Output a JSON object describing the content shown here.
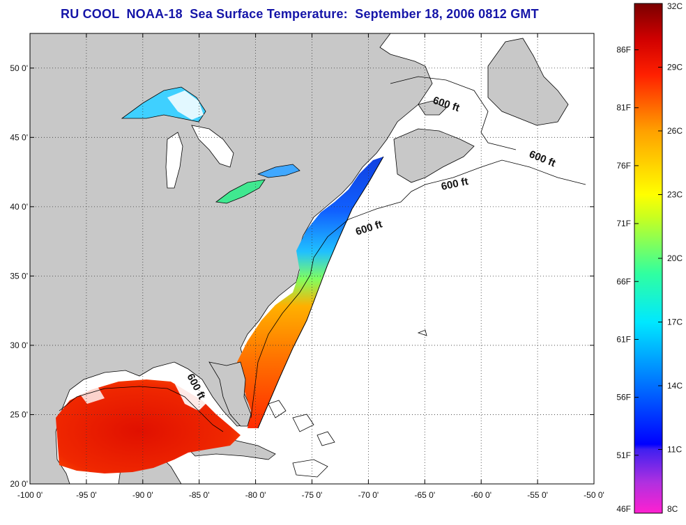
{
  "title": "RU COOL  NOAA-18  Sea Surface Temperature:  September 18, 2006 0812 GMT",
  "map": {
    "lon_range": [
      -100,
      -50
    ],
    "lat_range": [
      20,
      52.5
    ],
    "lon_ticks": [
      "-100 0'",
      "-95 0'",
      "-90 0'",
      "-85 0'",
      "-80 0'",
      "-75 0'",
      "-70 0'",
      "-65 0'",
      "-60 0'",
      "-55 0'",
      "-50 0'"
    ],
    "lat_ticks": [
      "20 0'",
      "25 0'",
      "30 0'",
      "35 0'",
      "40 0'",
      "45 0'",
      "50 0'"
    ],
    "grid": "dotted",
    "land_color": "#c8c8c8",
    "ocean_color": "#ffffff",
    "contour_labels": [
      "600 ft",
      "600 ft",
      "600 ft",
      "600 ft",
      "600 ft"
    ]
  },
  "colorbar": {
    "fahrenheit_labels": [
      "86F",
      "81F",
      "76F",
      "71F",
      "66F",
      "61F",
      "56F",
      "51F",
      "46F"
    ],
    "celsius_labels": [
      "32C",
      "29C",
      "26C",
      "23C",
      "20C",
      "17C",
      "14C",
      "11C",
      "8C"
    ],
    "range_c": [
      8,
      32
    ],
    "range_f": [
      46,
      90
    ],
    "colors": [
      "#ff20d0",
      "#8030e0",
      "#0000ff",
      "#0080ff",
      "#00ffff",
      "#40ff80",
      "#c0ff20",
      "#ffff00",
      "#ffa000",
      "#ff5000",
      "#ff0000",
      "#c00000",
      "#800000"
    ]
  }
}
